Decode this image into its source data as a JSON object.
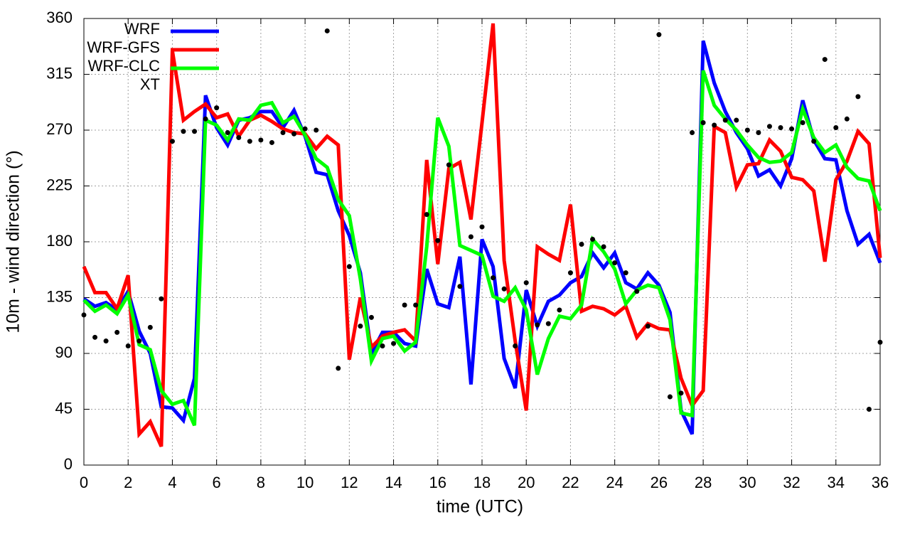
{
  "chart_data": {
    "type": "line",
    "xlabel": "time (UTC)",
    "ylabel": "10m - wind direction (°)",
    "x": [
      0,
      0.5,
      1,
      1.5,
      2,
      2.5,
      3,
      3.5,
      4,
      4.5,
      5,
      5.5,
      6,
      6.5,
      7,
      7.5,
      8,
      8.5,
      9,
      9.5,
      10,
      10.5,
      11,
      11.5,
      12,
      12.5,
      13,
      13.5,
      14,
      14.5,
      15,
      15.5,
      16,
      16.5,
      17,
      17.5,
      18,
      18.5,
      19,
      19.5,
      20,
      20.5,
      21,
      21.5,
      22,
      22.5,
      23,
      23.5,
      24,
      24.5,
      25,
      25.5,
      26,
      26.5,
      27,
      27.5,
      28,
      28.5,
      29,
      29.5,
      30,
      30.5,
      31,
      31.5,
      32,
      32.5,
      33,
      33.5,
      34,
      34.5,
      35,
      35.5,
      36
    ],
    "series": [
      {
        "name": "WRF",
        "color": "#0000ff",
        "style": "line",
        "values": [
          134,
          128,
          131,
          125,
          140,
          108,
          90,
          47,
          46,
          36,
          70,
          298,
          272,
          258,
          278,
          280,
          285,
          285,
          272,
          286,
          265,
          236,
          234,
          205,
          185,
          155,
          90,
          107,
          107,
          98,
          96,
          158,
          130,
          127,
          168,
          65,
          182,
          160,
          86,
          62,
          141,
          112,
          132,
          137,
          147,
          152,
          171,
          159,
          171,
          147,
          142,
          155,
          145,
          123,
          44,
          25,
          342,
          308,
          285,
          268,
          255,
          233,
          238,
          225,
          247,
          294,
          262,
          247,
          246,
          205,
          178,
          186,
          163
        ]
      },
      {
        "name": "WRF-GFS",
        "color": "#ff0000",
        "style": "line",
        "values": [
          160,
          139,
          139,
          126,
          153,
          25,
          35,
          15,
          334,
          278,
          285,
          291,
          280,
          283,
          265,
          278,
          282,
          277,
          271,
          268,
          267,
          255,
          265,
          258,
          85,
          135,
          95,
          104,
          107,
          109,
          100,
          246,
          162,
          239,
          244,
          198,
          276,
          356,
          165,
          100,
          44,
          176,
          170,
          165,
          210,
          124,
          128,
          126,
          121,
          128,
          103,
          114,
          110,
          109,
          70,
          48,
          60,
          273,
          268,
          224,
          242,
          243,
          262,
          253,
          232,
          230,
          221,
          164,
          230,
          245,
          269,
          259,
          167
        ]
      },
      {
        "name": "WRF-CLC",
        "color": "#00ff00",
        "style": "line",
        "values": [
          133,
          124,
          129,
          122,
          137,
          97,
          93,
          60,
          49,
          52,
          32,
          278,
          274,
          262,
          279,
          278,
          290,
          292,
          276,
          281,
          266,
          247,
          240,
          214,
          201,
          150,
          84,
          102,
          104,
          92,
          99,
          176,
          280,
          257,
          177,
          173,
          169,
          136,
          132,
          143,
          125,
          73,
          102,
          120,
          118,
          129,
          182,
          172,
          158,
          130,
          141,
          145,
          143,
          117,
          42,
          40,
          318,
          290,
          279,
          270,
          258,
          248,
          244,
          245,
          252,
          287,
          264,
          252,
          258,
          240,
          231,
          229,
          205
        ]
      },
      {
        "name": "XT",
        "color": "#000000",
        "style": "points",
        "values": [
          121,
          103,
          100,
          107,
          96,
          100,
          111,
          134,
          261,
          269,
          269,
          279,
          288,
          268,
          264,
          261,
          262,
          260,
          268,
          267,
          271,
          270,
          350,
          78,
          160,
          112,
          119,
          96,
          98,
          129,
          129,
          202,
          181,
          242,
          144,
          184,
          192,
          151,
          142,
          96,
          147,
          113,
          114,
          125,
          155,
          178,
          182,
          176,
          163,
          155,
          140,
          112,
          347,
          55,
          58,
          268,
          276,
          274,
          278,
          278,
          270,
          268,
          273,
          272,
          271,
          276,
          261,
          327,
          272,
          279,
          297,
          45,
          99
        ]
      }
    ],
    "xlim": [
      0,
      36
    ],
    "xticks": [
      0,
      2,
      4,
      6,
      8,
      10,
      12,
      14,
      16,
      18,
      20,
      22,
      24,
      26,
      28,
      30,
      32,
      34,
      36
    ],
    "ylim": [
      0,
      360
    ],
    "yticks": [
      0,
      45,
      90,
      135,
      180,
      225,
      270,
      315,
      360
    ],
    "grid": true,
    "legend": "top-left"
  }
}
